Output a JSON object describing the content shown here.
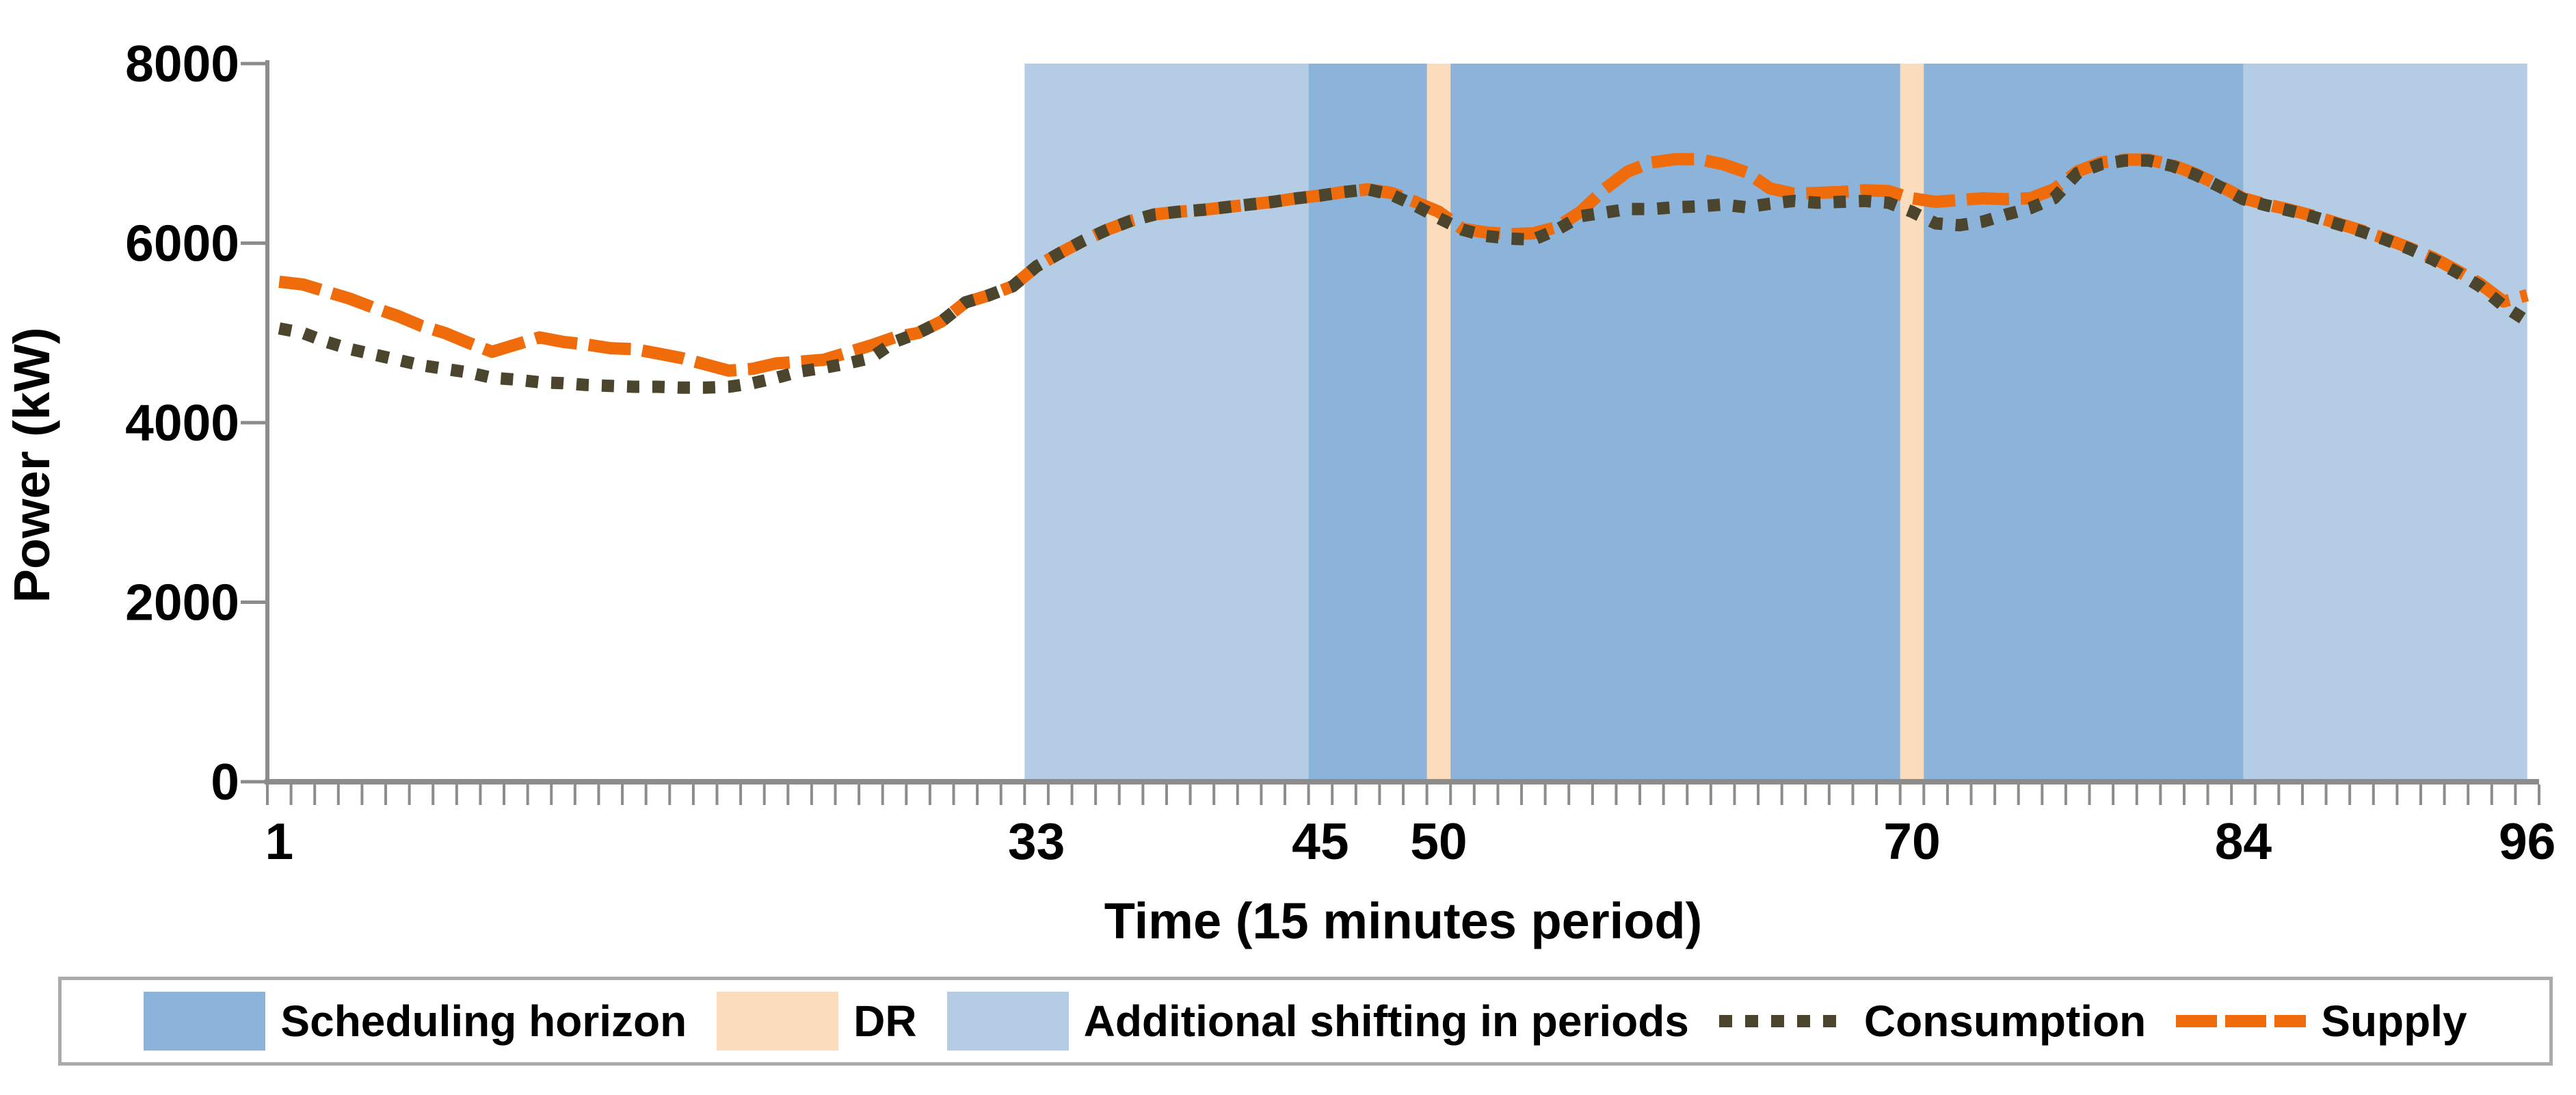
{
  "chart_data": {
    "type": "line",
    "title": "",
    "xlabel": "Time (15 minutes period)",
    "ylabel": "Power (kW)",
    "x_range": [
      1,
      96
    ],
    "x_count": 96,
    "ylim": [
      0,
      8000
    ],
    "grid": false,
    "legend_position": "bottom",
    "x_ticks": [
      1,
      33,
      45,
      50,
      70,
      84,
      96
    ],
    "y_ticks": [
      0,
      2000,
      4000,
      6000,
      8000
    ],
    "bands": [
      {
        "name": "Additional shifting in periods",
        "from": 32.5,
        "to": 44.5,
        "color": "#B5CDE4"
      },
      {
        "name": "Scheduling horizon",
        "from": 44.5,
        "to": 84.0,
        "color": "#8CB3D9"
      },
      {
        "name": "Additional shifting in periods",
        "from": 84.0,
        "to": 96.0,
        "color": "#B5CDE4"
      },
      {
        "name": "DR",
        "from": 49.5,
        "to": 50.5,
        "color": "#FBDCBC"
      },
      {
        "name": "DR",
        "from": 69.5,
        "to": 70.5,
        "color": "#FBDCBC"
      }
    ],
    "series": [
      {
        "name": "Supply",
        "style": "dashed",
        "color": "#F06C0B",
        "values": [
          5570,
          5540,
          5460,
          5380,
          5280,
          5190,
          5080,
          5000,
          4890,
          4790,
          4870,
          4950,
          4900,
          4870,
          4830,
          4820,
          4770,
          4720,
          4650,
          4580,
          4600,
          4660,
          4680,
          4700,
          4780,
          4860,
          4950,
          5000,
          5130,
          5340,
          5420,
          5520,
          5740,
          5890,
          6030,
          6150,
          6250,
          6320,
          6350,
          6370,
          6400,
          6430,
          6460,
          6500,
          6530,
          6570,
          6600,
          6560,
          6460,
          6350,
          6160,
          6120,
          6100,
          6110,
          6180,
          6350,
          6600,
          6800,
          6900,
          6935,
          6935,
          6880,
          6790,
          6610,
          6550,
          6560,
          6570,
          6590,
          6580,
          6500,
          6460,
          6480,
          6500,
          6490,
          6500,
          6600,
          6800,
          6900,
          6930,
          6930,
          6870,
          6770,
          6640,
          6500,
          6430,
          6370,
          6300,
          6220,
          6140,
          6050,
          5950,
          5840,
          5700,
          5550,
          5350,
          5420
        ]
      },
      {
        "name": "Consumption",
        "style": "dotted",
        "color": "#4A452C",
        "values": [
          5050,
          5000,
          4900,
          4820,
          4760,
          4700,
          4640,
          4600,
          4560,
          4500,
          4480,
          4450,
          4440,
          4420,
          4410,
          4400,
          4400,
          4390,
          4390,
          4400,
          4440,
          4500,
          4570,
          4610,
          4660,
          4720,
          4900,
          5000,
          5130,
          5340,
          5420,
          5520,
          5740,
          5890,
          6030,
          6150,
          6250,
          6320,
          6350,
          6370,
          6400,
          6430,
          6460,
          6500,
          6530,
          6570,
          6600,
          6540,
          6420,
          6280,
          6150,
          6080,
          6050,
          6040,
          6150,
          6300,
          6340,
          6380,
          6380,
          6400,
          6410,
          6430,
          6400,
          6440,
          6470,
          6450,
          6460,
          6470,
          6450,
          6350,
          6220,
          6200,
          6240,
          6320,
          6390,
          6500,
          6780,
          6880,
          6920,
          6920,
          6860,
          6760,
          6630,
          6490,
          6420,
          6360,
          6290,
          6210,
          6130,
          6040,
          5940,
          5820,
          5680,
          5520,
          5300,
          5130
        ]
      }
    ],
    "legend_items": [
      {
        "label": "Scheduling horizon",
        "swatch": "box",
        "color": "#8CB3D9"
      },
      {
        "label": "DR",
        "swatch": "box",
        "color": "#FBDCBC"
      },
      {
        "label": "Additional shifting in periods",
        "swatch": "box",
        "color": "#B5CDE4"
      },
      {
        "label": "Consumption",
        "swatch": "dotted",
        "color": "#4A452C"
      },
      {
        "label": "Supply",
        "swatch": "dashed",
        "color": "#F06C0B"
      }
    ],
    "colors": {
      "axis": "#8C8C8C",
      "text": "#000000",
      "legend_border": "#ABABAB",
      "background": "#FFFFFF"
    }
  }
}
